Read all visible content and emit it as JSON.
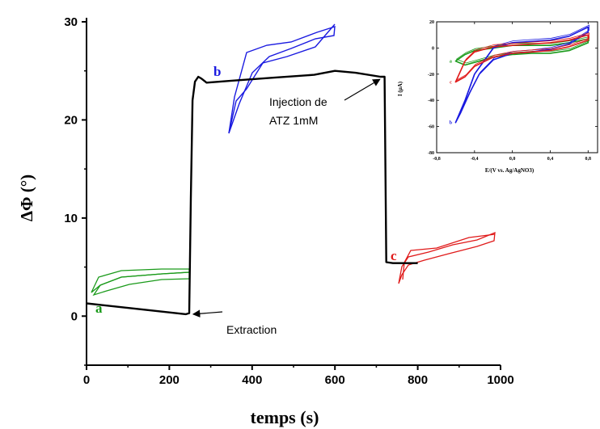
{
  "chart_data": [
    {
      "type": "line",
      "xlabel": "temps (s)",
      "ylabel": "ΔΦ (°)",
      "xlim": [
        0,
        1000
      ],
      "ylim": [
        -5,
        30
      ],
      "x_ticks": [
        "0",
        "200",
        "400",
        "600",
        "800",
        "1000"
      ],
      "y_ticks": [
        "0",
        "10",
        "20",
        "30"
      ],
      "series": [
        {
          "color": "#000000",
          "x": [
            0,
            240,
            248,
            252,
            256,
            262,
            270,
            278,
            290,
            350,
            450,
            550,
            600,
            650,
            710,
            720,
            724,
            740,
            780,
            800
          ],
          "y": [
            1.3,
            0.2,
            0.3,
            12,
            22,
            23.9,
            24.4,
            24.2,
            23.8,
            24.0,
            24.3,
            24.6,
            25.0,
            24.8,
            24.4,
            24.4,
            5.5,
            5.4,
            5.4,
            5.4
          ]
        }
      ],
      "curve_labels": [
        {
          "text": "a",
          "color": "#1a9a1a"
        },
        {
          "text": "b",
          "color": "#1a1ae0"
        },
        {
          "text": "c",
          "color": "#e01a1a"
        }
      ],
      "annotations": [
        {
          "text": "Injection de",
          "x": 720,
          "y": 24.3
        },
        {
          "text": "ATZ 1mM"
        },
        {
          "text": "Extraction",
          "x": 250,
          "y": 0.2
        }
      ],
      "embedded_voltammograms": [
        {
          "label": "a",
          "color": "#1a9a1a"
        },
        {
          "label": "b",
          "color": "#1a1ae0"
        },
        {
          "label": "c",
          "color": "#e01a1a"
        }
      ],
      "colors": {
        "main": "#000000",
        "a": "#1a9a1a",
        "b": "#1a1ae0",
        "c": "#e01a1a"
      }
    },
    {
      "type": "line",
      "inset": true,
      "xlabel": "E/(V vs. Ag/AgNO3)",
      "ylabel": "I (µA)",
      "xlim": [
        -0.8,
        0.9
      ],
      "ylim": [
        -80,
        20
      ],
      "x_ticks": [
        "-0,8",
        "-0,4",
        "0,0",
        "0,4",
        "0,8"
      ],
      "y_ticks": [
        "20",
        "0",
        "-20",
        "-40",
        "-60",
        "-80"
      ],
      "series": [
        {
          "name": "a",
          "color": "#1a9a1a",
          "x": [
            -0.6,
            -0.5,
            -0.4,
            -0.2,
            0.0,
            0.2,
            0.4,
            0.6,
            0.8,
            0.8,
            0.6,
            0.4,
            0.2,
            0.0,
            -0.2,
            -0.4,
            -0.5,
            -0.6
          ],
          "y": [
            -10,
            -13,
            -11,
            -7,
            -5,
            -4,
            -4,
            -2,
            4,
            7,
            4,
            2,
            2,
            2,
            0,
            -2,
            -5,
            -10
          ]
        },
        {
          "name": "b",
          "color": "#1a1ae0",
          "x": [
            -0.6,
            -0.55,
            -0.45,
            -0.35,
            -0.2,
            0.0,
            0.2,
            0.4,
            0.6,
            0.8,
            0.8,
            0.6,
            0.4,
            0.2,
            0.0,
            -0.2,
            -0.4,
            -0.5,
            -0.6
          ],
          "y": [
            -57,
            -50,
            -34,
            -20,
            -9,
            -4,
            -3,
            -1,
            3,
            12,
            16,
            9,
            6,
            5,
            4,
            0,
            -20,
            -40,
            -57
          ]
        },
        {
          "name": "c",
          "color": "#e01a1a",
          "x": [
            -0.6,
            -0.5,
            -0.4,
            -0.2,
            0.0,
            0.2,
            0.4,
            0.6,
            0.8,
            0.8,
            0.6,
            0.4,
            0.2,
            0.0,
            -0.2,
            -0.4,
            -0.5,
            -0.6
          ],
          "y": [
            -26,
            -22,
            -14,
            -7,
            -4,
            -3,
            -2,
            1,
            6,
            10,
            6,
            4,
            3,
            2,
            1,
            -3,
            -10,
            -26
          ]
        }
      ]
    }
  ]
}
